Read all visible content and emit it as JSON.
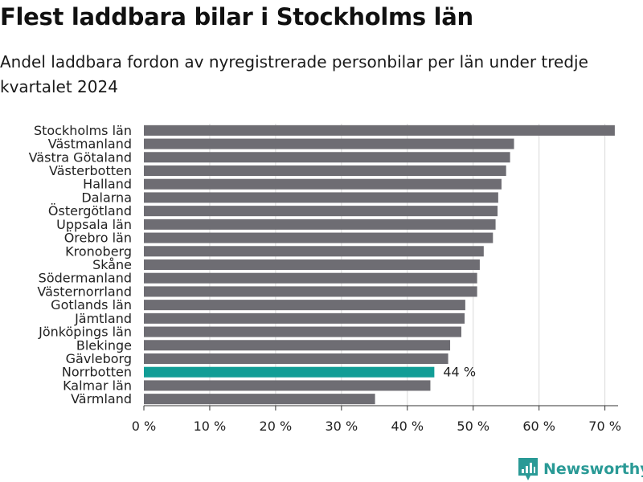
{
  "header": {
    "title": "Flest laddbara bilar i Stockholms län",
    "subtitle": "Andel laddbara fordon av nyregistrerade personbilar per län under tredje kvartalet 2024"
  },
  "chart_data": {
    "type": "bar",
    "orientation": "horizontal",
    "title": "Flest laddbara bilar i Stockholms län",
    "subtitle": "Andel laddbara fordon av nyregistrerade personbilar per län under tredje kvartalet 2024",
    "xlabel": "",
    "ylabel": "",
    "xlim": [
      0,
      72
    ],
    "grid": true,
    "categories": [
      "Stockholms län",
      "Västmanland",
      "Västra Götaland",
      "Västerbotten",
      "Halland",
      "Dalarna",
      "Östergötland",
      "Uppsala län",
      "Örebro län",
      "Kronoberg",
      "Skåne",
      "Södermanland",
      "Västernorrland",
      "Gotlands län",
      "Jämtland",
      "Jönköpings län",
      "Blekinge",
      "Gävleborg",
      "Norrbotten",
      "Kalmar län",
      "Värmland"
    ],
    "values": [
      71.5,
      56.2,
      55.6,
      55.0,
      54.3,
      53.8,
      53.7,
      53.4,
      53.0,
      51.6,
      51.0,
      50.6,
      50.6,
      48.8,
      48.7,
      48.2,
      46.5,
      46.2,
      44.1,
      43.5,
      35.1
    ],
    "ticks": [
      0,
      10,
      20,
      30,
      40,
      50,
      60,
      70
    ],
    "tick_labels": [
      "0 %",
      "10 %",
      "20 %",
      "30 %",
      "40 %",
      "50 %",
      "60 %",
      "70 %"
    ],
    "highlight": {
      "category": "Norrbotten",
      "label": "44 %"
    },
    "colors": {
      "bar": "#6e6d73",
      "highlight": "#119d96",
      "grid": "#d9d9d9",
      "axis": "#333333",
      "text": "#222222"
    }
  },
  "branding": {
    "name": "Newsworthy",
    "icon": "newsworthy-logo-icon",
    "color": "#2a9a96"
  }
}
